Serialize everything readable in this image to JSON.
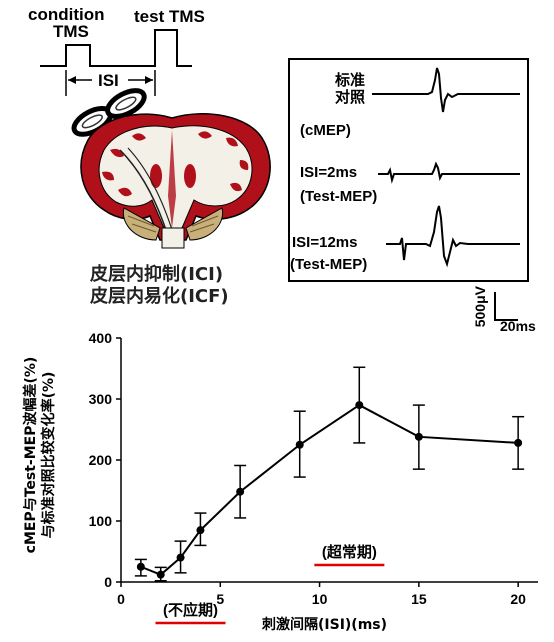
{
  "paradigm": {
    "condition_label_line1": "condition",
    "condition_label_line2": "TMS",
    "test_label": "test TMS",
    "isi_label": "ISI"
  },
  "caption": {
    "line1": "皮层内抑制(ICI)",
    "line2": "皮层内易化(ICF)"
  },
  "inset": {
    "trace1_label_line1": "标准",
    "trace1_label_line2": "对照",
    "trace1_label_line3": "(cMEP)",
    "trace2_label_line1": "ISI=2ms",
    "trace2_label_line2": "(Test-MEP)",
    "trace3_label_line1": "ISI=12ms",
    "trace3_label_line2": "(Test-MEP)"
  },
  "scale_bar": {
    "voltage": "500μV",
    "time": "20ms"
  },
  "chart_data": {
    "type": "line",
    "ylabel_line1": "cMEP与Test-MEP波幅差(%)",
    "ylabel_line2": "与标准对照比较变化率(%)",
    "xlabel": "刺激间隔(ISI)(ms)",
    "xlim": [
      0,
      21
    ],
    "ylim": [
      0,
      400
    ],
    "x_ticks": [
      0,
      5,
      10,
      15,
      20
    ],
    "y_ticks": [
      0,
      100,
      200,
      300,
      400
    ],
    "x": [
      1,
      2,
      3,
      4,
      6,
      9,
      12,
      15,
      20
    ],
    "y": [
      25,
      12,
      40,
      85,
      148,
      225,
      290,
      238,
      228
    ],
    "err_low": [
      15,
      10,
      25,
      25,
      43,
      53,
      62,
      53,
      43
    ],
    "err_high": [
      12,
      12,
      27,
      28,
      43,
      55,
      62,
      52,
      43
    ],
    "annotations": [
      {
        "text": "(不应期)",
        "x": 3.5
      },
      {
        "text": "(超常期)",
        "x": 11.5
      }
    ],
    "annotation_underline_color": "#e00000"
  },
  "colors": {
    "cortex_red": "#b0101a",
    "white_matter": "#f3f0e8",
    "underline_red": "#e00000"
  }
}
